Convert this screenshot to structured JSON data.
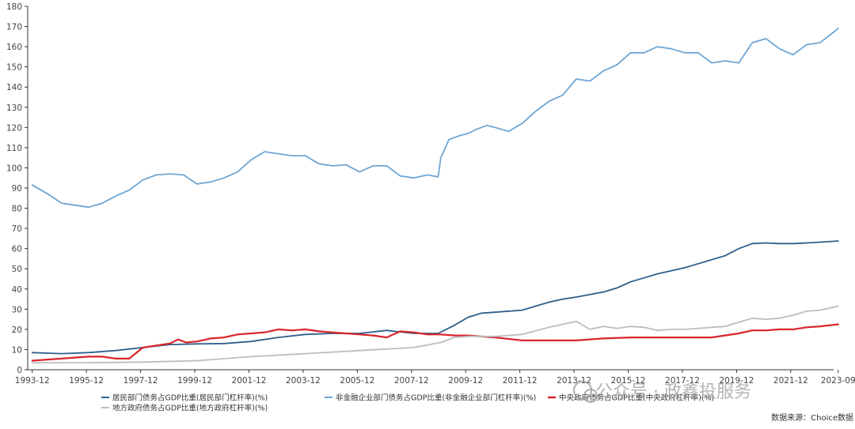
{
  "chart_data": {
    "type": "line",
    "title": "",
    "xlabel": "",
    "ylabel": "",
    "ylim": [
      0,
      180
    ],
    "yticks": [
      0,
      10,
      20,
      30,
      40,
      50,
      60,
      70,
      80,
      90,
      100,
      110,
      120,
      130,
      140,
      150,
      160,
      170,
      180
    ],
    "xlim": [
      1993.75,
      2023.5
    ],
    "xtick_labels": [
      "1993-12",
      "1995-12",
      "1997-12",
      "1999-12",
      "2001-12",
      "2003-12",
      "2005-12",
      "2007-12",
      "2009-12",
      "2011-12",
      "2013-12",
      "2015-12",
      "2017-12",
      "2019-12",
      "2021-12",
      "2023-09"
    ],
    "xtick_positions": [
      1993.917,
      1995.917,
      1997.917,
      1999.917,
      2001.917,
      2003.917,
      2005.917,
      2007.917,
      2009.917,
      2011.917,
      2013.917,
      2015.917,
      2017.917,
      2019.917,
      2021.917,
      2023.667
    ],
    "series": [
      {
        "name": "居民部门债务占GDP比重(居民部门杠杆率)(%)",
        "color": "#2d5f8a",
        "width": 1.8,
        "x": [
          1993.92,
          1995,
          1996,
          1997,
          1998,
          1999,
          2000,
          2001,
          2002,
          2003,
          2004,
          2005,
          2006,
          2007,
          2008,
          2008.9,
          2009.5,
          2010,
          2010.5,
          2011,
          2012,
          2013,
          2013.5,
          2014,
          2015,
          2015.5,
          2016,
          2016.5,
          2017,
          2017.5,
          2018,
          2018.5,
          2019,
          2019.5,
          2020,
          2020.5,
          2021,
          2021.5,
          2022,
          2022.5,
          2023,
          2023.67
        ],
        "values": [
          8.5,
          8,
          8.5,
          9.5,
          11,
          12.5,
          12.8,
          13,
          14,
          16,
          17.5,
          18,
          18,
          19.5,
          18,
          18,
          22,
          26,
          28,
          28.5,
          29.5,
          33.5,
          35,
          36,
          38.5,
          40.5,
          43.5,
          45.5,
          47.5,
          49,
          50.5,
          52.5,
          54.5,
          56.5,
          60,
          62.5,
          62.8,
          62.5,
          62.5,
          62.8,
          63.2,
          63.8
        ]
      },
      {
        "name": "非金融企业部门债务占GDP比重(非金融企业部门杠杆率)(%)",
        "color": "#6ea6d4",
        "width": 1.8,
        "x": [
          1993.92,
          1994.5,
          1995,
          1995.5,
          1996,
          1996.5,
          1997,
          1997.5,
          1998,
          1998.5,
          1999,
          1999.5,
          2000,
          2000.5,
          2001,
          2001.5,
          2002,
          2002.5,
          2003,
          2003.5,
          2004,
          2004.5,
          2005,
          2005.5,
          2006,
          2006.5,
          2007,
          2007.5,
          2008,
          2008.5,
          2008.9,
          2009,
          2009.3,
          2009.7,
          2010,
          2010.3,
          2010.7,
          2011,
          2011.5,
          2012,
          2012.5,
          2013,
          2013.5,
          2014,
          2014.5,
          2015,
          2015.5,
          2016,
          2016.5,
          2017,
          2017.5,
          2018,
          2018.5,
          2019,
          2019.5,
          2020,
          2020.5,
          2021,
          2021.5,
          2022,
          2022.5,
          2023,
          2023.67
        ],
        "values": [
          91.5,
          87,
          82.5,
          81.5,
          80.5,
          82.5,
          86,
          89,
          94,
          96.5,
          97,
          96.5,
          92,
          93,
          95,
          98,
          104,
          108,
          107,
          106,
          106,
          102,
          101,
          101.5,
          98,
          101,
          101,
          96,
          95,
          96.5,
          95.5,
          105,
          114,
          116,
          117,
          119,
          121,
          120,
          118,
          122,
          128,
          133,
          136,
          144,
          143,
          148,
          151,
          157,
          157,
          160,
          159,
          157,
          157,
          152,
          153,
          152,
          162,
          164,
          159,
          156,
          161,
          162,
          169
        ]
      },
      {
        "name": "中央政府债务占GDP比重(中央政府杠杆率)(%)",
        "color": "#d9242a",
        "width": 2.2,
        "x": [
          1993.92,
          1995,
          1996,
          1996.5,
          1997,
          1997.5,
          1998,
          1998.5,
          1999,
          1999.3,
          1999.6,
          2000,
          2000.5,
          2001,
          2001.5,
          2002,
          2002.5,
          2003,
          2003.5,
          2004,
          2004.5,
          2005,
          2005.5,
          2006,
          2006.5,
          2007,
          2007.5,
          2008,
          2008.5,
          2009,
          2009.5,
          2010,
          2011,
          2012,
          2013,
          2014,
          2015,
          2016,
          2017,
          2018,
          2019,
          2020,
          2020.5,
          2021,
          2021.5,
          2022,
          2022.5,
          2023,
          2023.67
        ],
        "values": [
          4.5,
          5.5,
          6.5,
          6.5,
          5.5,
          5.5,
          11,
          12,
          13,
          15,
          13.5,
          14,
          15.5,
          16,
          17.5,
          18,
          18.5,
          20,
          19.5,
          20,
          19,
          18.5,
          18,
          17.5,
          17,
          16,
          19,
          18.5,
          17.5,
          17.5,
          17,
          17,
          16,
          14.5,
          14.5,
          14.5,
          15.5,
          16,
          16,
          16,
          16,
          18,
          19.5,
          19.5,
          20,
          20,
          21,
          21.5,
          22.5
        ]
      },
      {
        "name": "地方政府债务占GDP比重(地方政府杠杆率)(%)",
        "color": "#bdbdbd",
        "width": 1.8,
        "x": [
          1993.92,
          1996,
          1998,
          2000,
          2002,
          2004,
          2006,
          2008,
          2009,
          2009.5,
          2010,
          2011,
          2012,
          2013,
          2013.5,
          2014,
          2014.5,
          2015,
          2015.5,
          2016,
          2016.5,
          2017,
          2017.5,
          2018,
          2018.5,
          2019,
          2019.5,
          2020,
          2020.5,
          2021,
          2021.5,
          2022,
          2022.5,
          2023,
          2023.67
        ],
        "values": [
          3.5,
          3.5,
          3.8,
          4.5,
          6.5,
          8,
          9.5,
          11,
          13.5,
          16,
          16.5,
          16.5,
          17.5,
          21,
          22.5,
          24,
          20,
          21.5,
          20.5,
          21.5,
          21,
          19.5,
          20,
          20,
          20.5,
          21,
          21.5,
          23.5,
          25.5,
          25,
          25.5,
          27,
          29,
          29.5,
          31.5
        ]
      }
    ],
    "legend": {
      "placement": "bottom",
      "entries": [
        "居民部门债务占GDP比重(居民部门杠杆率)(%)",
        "非金融企业部门债务占GDP比重(非金融企业部门杠杆率)(%)",
        "中央政府债务占GDP比重(中央政府杠杆率)(%)",
        "地方政府债务占GDP比重(地方政府杠杆率)(%)"
      ]
    },
    "source": "数据来源：Choice数据",
    "watermark": "公众号 · 政鑫投服务"
  }
}
